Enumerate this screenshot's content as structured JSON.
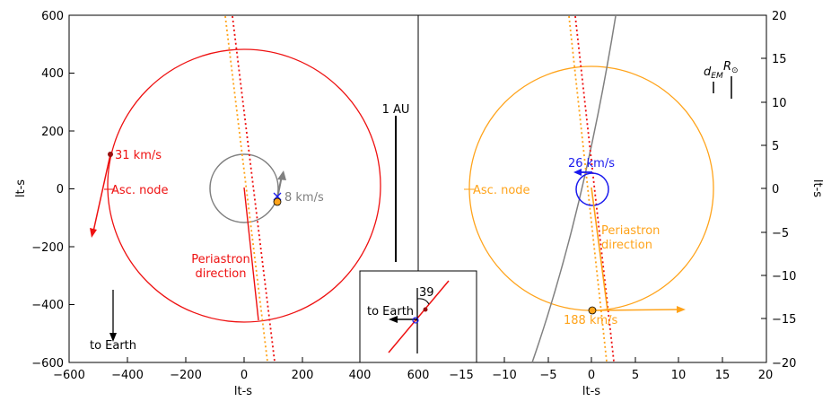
{
  "colors": {
    "red": "#ee1111",
    "darkred": "#991111",
    "orange": "#ffa31a",
    "gray": "#808080",
    "blue": "#1a1aee",
    "black": "#000000"
  },
  "left_panel": {
    "xlabel": "lt-s",
    "ylabel": "lt-s",
    "xticks": [
      "−600",
      "−400",
      "−200",
      "0",
      "200",
      "400",
      "600"
    ],
    "yticks": [
      "600",
      "400",
      "200",
      "0",
      "−200",
      "−400",
      "−600"
    ],
    "labels": {
      "speed_red": "31 km/s",
      "asc_node": "Asc. node",
      "speed_gray": "8 km/s",
      "periastron_line1": "Periastron",
      "periastron_line2": "direction",
      "to_earth": "to Earth",
      "scale_bar": "1 AU"
    }
  },
  "right_panel": {
    "xlabel": "lt-s",
    "ylabel": "lt-s",
    "xticks": [
      "−15",
      "−10",
      "−5",
      "0",
      "5",
      "10",
      "15",
      "20"
    ],
    "yticks": [
      "20",
      "15",
      "10",
      "5",
      "0",
      "−5",
      "−10",
      "−15",
      "−20"
    ],
    "labels": {
      "speed_blue": "26 km/s",
      "asc_node": "Asc. node",
      "periastron_line1": "Periastron",
      "periastron_line2": "direction",
      "speed_orange": "188 km/s",
      "d_em": "d",
      "d_em_sub": "EM",
      "r_sun": "R",
      "r_sun_sub": "⊙"
    }
  },
  "inset": {
    "angle_label": "39",
    "to_earth": "to Earth"
  }
}
